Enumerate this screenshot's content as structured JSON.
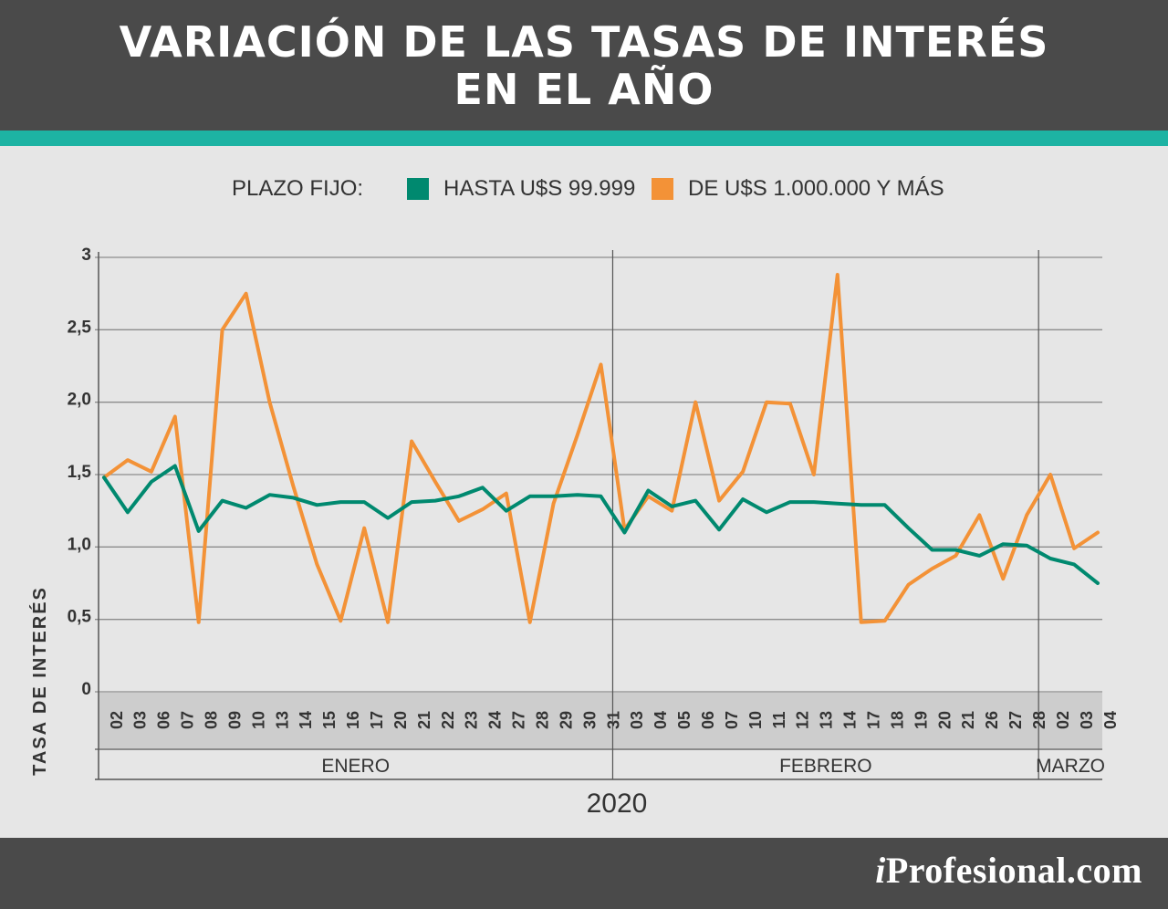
{
  "header": {
    "title": "VARIACIÓN DE LAS TASAS DE INTERÉS\nEN EL AÑO"
  },
  "legend": {
    "prefix": "PLAZO FIJO:",
    "items": [
      {
        "label": "HASTA U$S 99.999",
        "color": "#00896f"
      },
      {
        "label": "DE U$S 1.000.000 Y MÁS",
        "color": "#f39237"
      }
    ]
  },
  "colors": {
    "header_bg": "#4a4a4a",
    "accent_strip": "#1db3a3",
    "background": "#e6e6e6",
    "date_band": "#cdcdcd",
    "grid": "#8c8c8c"
  },
  "chart_data": {
    "type": "line",
    "title": "VARIACIÓN DE LAS TASAS DE INTERÉS EN EL AÑO",
    "ylabel": "TASA DE INTERÉS",
    "xlabel": "2020",
    "ylim": [
      0,
      3
    ],
    "y_ticks": [
      {
        "value": 0,
        "label": "0"
      },
      {
        "value": 0.5,
        "label": "0,5"
      },
      {
        "value": 1.0,
        "label": "1,0"
      },
      {
        "value": 1.5,
        "label": "1,5"
      },
      {
        "value": 2.0,
        "label": "2,0"
      },
      {
        "value": 2.5,
        "label": "2,5"
      },
      {
        "value": 3.0,
        "label": "3"
      }
    ],
    "grid": true,
    "legend_position": "top",
    "categories": [
      "02",
      "03",
      "06",
      "07",
      "08",
      "09",
      "10",
      "13",
      "14",
      "15",
      "16",
      "17",
      "20",
      "21",
      "22",
      "23",
      "24",
      "27",
      "28",
      "29",
      "30",
      "31",
      "03",
      "04",
      "05",
      "06",
      "07",
      "10",
      "11",
      "12",
      "13",
      "14",
      "17",
      "18",
      "19",
      "20",
      "21",
      "26",
      "27",
      "28",
      "02",
      "03",
      "04"
    ],
    "months": [
      {
        "label": "ENERO",
        "start": 0,
        "end": 21
      },
      {
        "label": "FEBRERO",
        "start": 22,
        "end": 39
      },
      {
        "label": "MARZO",
        "start": 40,
        "end": 42
      }
    ],
    "year": "2020",
    "series": [
      {
        "name": "HASTA U$S 99.999",
        "color": "#00896f",
        "values": [
          1.48,
          1.24,
          1.45,
          1.56,
          1.11,
          1.32,
          1.27,
          1.36,
          1.34,
          1.29,
          1.31,
          1.31,
          1.2,
          1.31,
          1.32,
          1.35,
          1.41,
          1.25,
          1.35,
          1.35,
          1.36,
          1.35,
          1.1,
          1.39,
          1.28,
          1.32,
          1.12,
          1.33,
          1.24,
          1.31,
          1.31,
          1.3,
          1.29,
          1.29,
          1.13,
          0.98,
          0.98,
          0.94,
          1.02,
          1.01,
          0.92,
          0.88,
          0.75
        ]
      },
      {
        "name": "DE U$S 1.000.000 Y MÁS",
        "color": "#f39237",
        "values": [
          1.48,
          1.6,
          1.52,
          1.9,
          0.48,
          2.5,
          2.75,
          2.0,
          1.42,
          0.88,
          0.49,
          1.13,
          0.48,
          1.73,
          1.45,
          1.18,
          1.26,
          1.37,
          0.48,
          1.3,
          1.77,
          2.26,
          1.12,
          1.35,
          1.25,
          2.0,
          1.32,
          1.52,
          2.0,
          1.99,
          1.5,
          2.88,
          0.48,
          0.49,
          0.74,
          0.85,
          0.94,
          1.22,
          0.78,
          1.22,
          1.5,
          0.99,
          1.1
        ]
      }
    ]
  },
  "brand": {
    "i": "i",
    "name": "Profesional.com"
  }
}
